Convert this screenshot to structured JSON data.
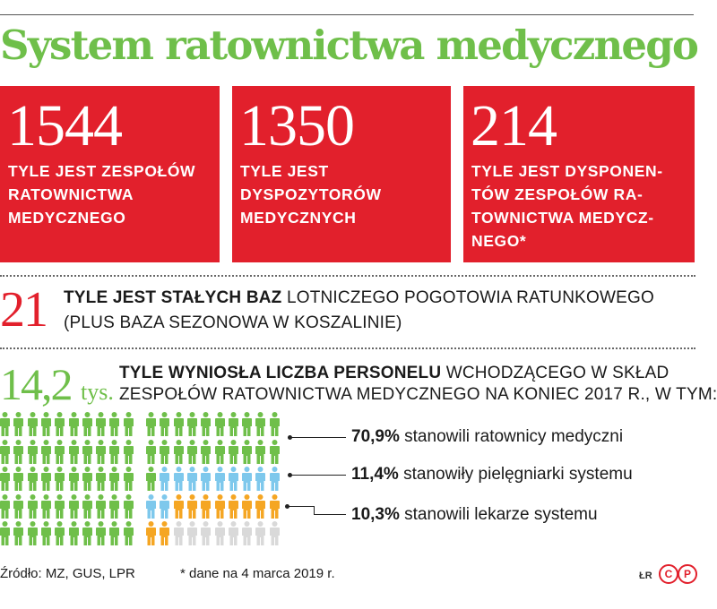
{
  "title": "System ratownictwa medycznego",
  "cards": [
    {
      "number": "1544",
      "lines": [
        "TYLE JEST ZESPOŁÓW",
        "RATOWNICTWA",
        "MEDYCZNEGO"
      ]
    },
    {
      "number": "1350",
      "lines": [
        "TYLE JEST",
        "DYSPOZYTORÓW",
        "MEDYCZNYCH"
      ]
    },
    {
      "number": "214",
      "lines": [
        "TYLE JEST DYSPONEN-",
        "TÓW ZESPOŁÓW RA-",
        "TOWNICTWA MEDYCZ-",
        "NEGO*"
      ]
    }
  ],
  "bases": {
    "number": "21",
    "bold": "TYLE JEST STAŁYCH BAZ",
    "rest": " LOTNICZEGO POGOTOWIA RATUNKOWEGO",
    "line2": "(PLUS BAZA SEZONOWA W KOSZALINIE)"
  },
  "staff": {
    "number": "14,2",
    "unit": "tys.",
    "bold": "TYLE WYNIOSŁA LICZBA PERSONELU",
    "rest": " WCHODZĄCEGO W SKŁAD",
    "line2": "ZESPOŁÓW RATOWNICTWA MEDYCZNEGO NA KONIEC 2017 R., W TYM:",
    "breakdown": [
      {
        "percent": "70,9%",
        "label": " stanowili ratownicy medyczni",
        "value": 70.9,
        "color": "#6fbf4a"
      },
      {
        "percent": "11,4%",
        "label": " stanowiły pielęgniarki systemu",
        "value": 11.4,
        "color": "#7ec8ec"
      },
      {
        "percent": "10,3%",
        "label": " stanowili lekarze systemu",
        "value": 10.3,
        "color": "#f5a623"
      }
    ],
    "other_color": "#d9d9d9"
  },
  "footer": {
    "source": "Źródło: MZ, GUS, LPR",
    "note": "* dane na 4 marca 2019 r.",
    "initials": "ŁR",
    "logo": "CP"
  }
}
